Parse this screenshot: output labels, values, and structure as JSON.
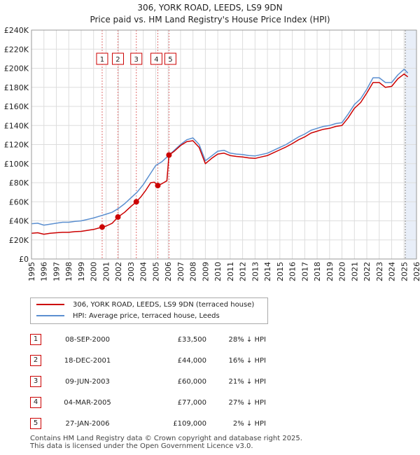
{
  "title_line1": "306, YORK ROAD, LEEDS, LS9 9DN",
  "title_line2": "Price paid vs. HM Land Registry's House Price Index (HPI)",
  "colors": {
    "price_line": "#cc0000",
    "hpi_line": "#5b8fd0",
    "grid": "#dddddd",
    "marker_line": "#e07070",
    "future_shade": "#e8eef8"
  },
  "chart_data": {
    "type": "line",
    "xlabel": "",
    "ylabel": "",
    "xlim": [
      1995,
      2026
    ],
    "ylim": [
      0,
      240000
    ],
    "x_ticks": [
      "1995",
      "1996",
      "1997",
      "1998",
      "1999",
      "2000",
      "2001",
      "2002",
      "2003",
      "2004",
      "2005",
      "2006",
      "2007",
      "2008",
      "2009",
      "2010",
      "2011",
      "2012",
      "2013",
      "2014",
      "2015",
      "2016",
      "2017",
      "2018",
      "2019",
      "2020",
      "2021",
      "2022",
      "2023",
      "2024",
      "2025",
      "2026"
    ],
    "y_ticks": [
      {
        "value": 0,
        "label": "£0"
      },
      {
        "value": 20000,
        "label": "£20K"
      },
      {
        "value": 40000,
        "label": "£40K"
      },
      {
        "value": 60000,
        "label": "£60K"
      },
      {
        "value": 80000,
        "label": "£80K"
      },
      {
        "value": 100000,
        "label": "£100K"
      },
      {
        "value": 120000,
        "label": "£120K"
      },
      {
        "value": 140000,
        "label": "£140K"
      },
      {
        "value": 160000,
        "label": "£160K"
      },
      {
        "value": 180000,
        "label": "£180K"
      },
      {
        "value": 200000,
        "label": "£200K"
      },
      {
        "value": 220000,
        "label": "£220K"
      },
      {
        "value": 240000,
        "label": "£240K"
      }
    ],
    "future_start": 2025.1,
    "series": [
      {
        "name": "HPI: Average price, terraced house, Leeds",
        "color": "#5b8fd0",
        "points": [
          [
            1995.0,
            37000
          ],
          [
            1995.5,
            37500
          ],
          [
            1996.0,
            35500
          ],
          [
            1996.5,
            36500
          ],
          [
            1997.0,
            37500
          ],
          [
            1997.5,
            38500
          ],
          [
            1998.0,
            38500
          ],
          [
            1998.5,
            39500
          ],
          [
            1999.0,
            40000
          ],
          [
            1999.5,
            41500
          ],
          [
            2000.0,
            43000
          ],
          [
            2000.5,
            45000
          ],
          [
            2001.0,
            47000
          ],
          [
            2001.5,
            49000
          ],
          [
            2002.0,
            53000
          ],
          [
            2002.5,
            58000
          ],
          [
            2003.0,
            64000
          ],
          [
            2003.5,
            70000
          ],
          [
            2004.0,
            78000
          ],
          [
            2004.5,
            88000
          ],
          [
            2005.0,
            98000
          ],
          [
            2005.5,
            102000
          ],
          [
            2006.0,
            108000
          ],
          [
            2006.5,
            114000
          ],
          [
            2007.0,
            120000
          ],
          [
            2007.5,
            125000
          ],
          [
            2008.0,
            127000
          ],
          [
            2008.5,
            120000
          ],
          [
            2009.0,
            103000
          ],
          [
            2009.5,
            108000
          ],
          [
            2010.0,
            113000
          ],
          [
            2010.5,
            114000
          ],
          [
            2011.0,
            111000
          ],
          [
            2011.5,
            110000
          ],
          [
            2012.0,
            109500
          ],
          [
            2012.5,
            108500
          ],
          [
            2013.0,
            108000
          ],
          [
            2013.5,
            109500
          ],
          [
            2014.0,
            111000
          ],
          [
            2014.5,
            114000
          ],
          [
            2015.0,
            117000
          ],
          [
            2015.5,
            120000
          ],
          [
            2016.0,
            124000
          ],
          [
            2016.5,
            128000
          ],
          [
            2017.0,
            131000
          ],
          [
            2017.5,
            135000
          ],
          [
            2018.0,
            137000
          ],
          [
            2018.5,
            139000
          ],
          [
            2019.0,
            140000
          ],
          [
            2019.5,
            142000
          ],
          [
            2020.0,
            143000
          ],
          [
            2020.5,
            152000
          ],
          [
            2021.0,
            162000
          ],
          [
            2021.5,
            168000
          ],
          [
            2022.0,
            178000
          ],
          [
            2022.5,
            190000
          ],
          [
            2023.0,
            190000
          ],
          [
            2023.5,
            185000
          ],
          [
            2024.0,
            185000
          ],
          [
            2024.5,
            193000
          ],
          [
            2025.0,
            199000
          ],
          [
            2025.3,
            195000
          ]
        ]
      },
      {
        "name": "306, YORK ROAD, LEEDS, LS9 9DN (terraced house)",
        "color": "#cc0000",
        "points": [
          [
            1995.0,
            27000
          ],
          [
            1995.5,
            27500
          ],
          [
            1996.0,
            26000
          ],
          [
            1996.5,
            27000
          ],
          [
            1997.0,
            27500
          ],
          [
            1997.5,
            28000
          ],
          [
            1998.0,
            28000
          ],
          [
            1998.5,
            28700
          ],
          [
            1999.0,
            29000
          ],
          [
            1999.5,
            30000
          ],
          [
            2000.0,
            31000
          ],
          [
            2000.69,
            33500
          ],
          [
            2001.0,
            34500
          ],
          [
            2001.5,
            37500
          ],
          [
            2001.96,
            44000
          ],
          [
            2002.5,
            49000
          ],
          [
            2003.0,
            55000
          ],
          [
            2003.44,
            60000
          ],
          [
            2003.8,
            65000
          ],
          [
            2004.2,
            72000
          ],
          [
            2004.6,
            80000
          ],
          [
            2004.9,
            80500
          ],
          [
            2005.17,
            77000
          ],
          [
            2005.5,
            79000
          ],
          [
            2005.9,
            82000
          ],
          [
            2006.07,
            109000
          ],
          [
            2006.5,
            113000
          ],
          [
            2007.0,
            119000
          ],
          [
            2007.5,
            123000
          ],
          [
            2008.0,
            124000
          ],
          [
            2008.5,
            117000
          ],
          [
            2009.0,
            100000
          ],
          [
            2009.5,
            105500
          ],
          [
            2010.0,
            110000
          ],
          [
            2010.5,
            111000
          ],
          [
            2011.0,
            108500
          ],
          [
            2011.5,
            107500
          ],
          [
            2012.0,
            107000
          ],
          [
            2012.5,
            106000
          ],
          [
            2013.0,
            105500
          ],
          [
            2013.5,
            107000
          ],
          [
            2014.0,
            108500
          ],
          [
            2014.5,
            111500
          ],
          [
            2015.0,
            114500
          ],
          [
            2015.5,
            117500
          ],
          [
            2016.0,
            121000
          ],
          [
            2016.5,
            125000
          ],
          [
            2017.0,
            128000
          ],
          [
            2017.5,
            132000
          ],
          [
            2018.0,
            134000
          ],
          [
            2018.5,
            136000
          ],
          [
            2019.0,
            137000
          ],
          [
            2019.5,
            139000
          ],
          [
            2020.0,
            140000
          ],
          [
            2020.5,
            148000
          ],
          [
            2021.0,
            158000
          ],
          [
            2021.5,
            164000
          ],
          [
            2022.0,
            174000
          ],
          [
            2022.5,
            185000
          ],
          [
            2023.0,
            185000
          ],
          [
            2023.5,
            180000
          ],
          [
            2024.0,
            181000
          ],
          [
            2024.5,
            189000
          ],
          [
            2025.0,
            194000
          ],
          [
            2025.3,
            191000
          ]
        ]
      }
    ],
    "sales": [
      {
        "num": "1",
        "x": 2000.69,
        "price": 33500
      },
      {
        "num": "2",
        "x": 2001.96,
        "price": 44000
      },
      {
        "num": "3",
        "x": 2003.44,
        "price": 60000
      },
      {
        "num": "4",
        "x": 2005.17,
        "price": 77000
      },
      {
        "num": "5",
        "x": 2006.07,
        "price": 109000
      }
    ]
  },
  "legend": {
    "price_label": "306, YORK ROAD, LEEDS, LS9 9DN (terraced house)",
    "hpi_label": "HPI: Average price, terraced house, Leeds"
  },
  "table": [
    {
      "num": "1",
      "date": "08-SEP-2000",
      "price": "£33,500",
      "pct": "28% ↓ HPI"
    },
    {
      "num": "2",
      "date": "18-DEC-2001",
      "price": "£44,000",
      "pct": "16% ↓ HPI"
    },
    {
      "num": "3",
      "date": "09-JUN-2003",
      "price": "£60,000",
      "pct": "21% ↓ HPI"
    },
    {
      "num": "4",
      "date": "04-MAR-2005",
      "price": "£77,000",
      "pct": "27% ↓ HPI"
    },
    {
      "num": "5",
      "date": "27-JAN-2006",
      "price": "£109,000",
      "pct": "2% ↓ HPI"
    }
  ],
  "footer_line1": "Contains HM Land Registry data © Crown copyright and database right 2025.",
  "footer_line2": "This data is licensed under the Open Government Licence v3.0."
}
